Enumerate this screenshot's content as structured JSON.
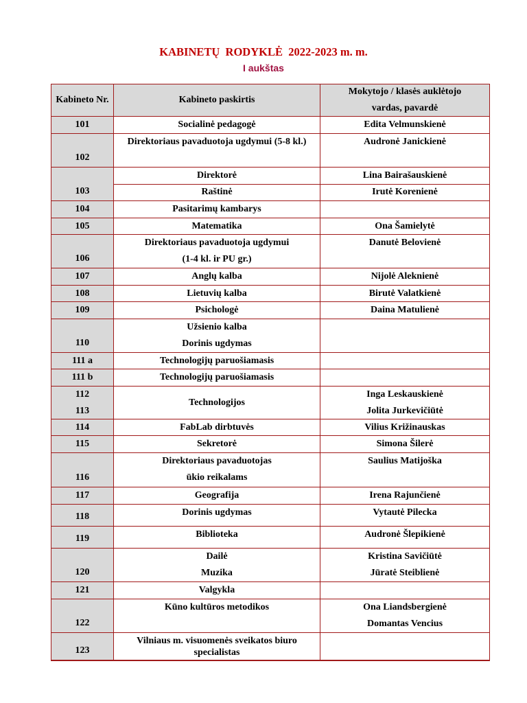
{
  "header": {
    "title": "KABINETŲ  RODYKLĖ  2022-2023 m. m.",
    "subtitle": "I aukštas"
  },
  "colors": {
    "title": "#c00000",
    "subtitle": "#a01040",
    "border": "#a01818",
    "shade": "#d9d9d9"
  },
  "table": {
    "columns": [
      "Kabineto Nr.",
      "Kabineto paskirtis",
      [
        "Mokytojo / klasės auklėtojo",
        "vardas, pavardė"
      ]
    ],
    "rows": [
      {
        "number": [
          "101"
        ],
        "entries": [
          {
            "purpose": [
              "Socialinė pedagogė"
            ],
            "teacher": [
              "Edita Velmunskienė"
            ]
          }
        ]
      },
      {
        "number": [
          "102"
        ],
        "entries": [
          {
            "purpose": [
              "Direktoriaus pavaduotoja ugdymui  (5-8 kl.)"
            ],
            "teacher": [
              "Audronė Janickienė"
            ]
          }
        ]
      },
      {
        "number": [
          "103"
        ],
        "entries": [
          {
            "purpose": [
              "Direktorė"
            ],
            "teacher": [
              "Lina Bairašauskienė"
            ]
          },
          {
            "purpose": [
              "Raštinė"
            ],
            "teacher": [
              "Irutė Korenienė"
            ]
          }
        ]
      },
      {
        "number": [
          "104"
        ],
        "entries": [
          {
            "purpose": [
              "Pasitarimų kambarys"
            ],
            "teacher": []
          }
        ]
      },
      {
        "number": [
          "105"
        ],
        "entries": [
          {
            "purpose": [
              "Matematika"
            ],
            "teacher": [
              "Ona Šamielytė"
            ]
          }
        ]
      },
      {
        "number": [
          "106"
        ],
        "entries": [
          {
            "purpose": [
              "Direktoriaus pavaduotoja ugdymui",
              "(1-4 kl. ir PU gr.)"
            ],
            "teacher": [
              "Danutė Belovienė"
            ]
          }
        ]
      },
      {
        "number": [
          "107"
        ],
        "entries": [
          {
            "purpose": [
              "Anglų kalba"
            ],
            "teacher": [
              "Nijolė Aleknienė"
            ]
          }
        ]
      },
      {
        "number": [
          "108"
        ],
        "entries": [
          {
            "purpose": [
              "Lietuvių kalba"
            ],
            "teacher": [
              "Birutė Valatkienė"
            ]
          }
        ]
      },
      {
        "number": [
          "109"
        ],
        "entries": [
          {
            "purpose": [
              "Psichologė"
            ],
            "teacher": [
              "Daina Matulienė"
            ]
          }
        ]
      },
      {
        "number": [
          "110"
        ],
        "entries": [
          {
            "purpose": [
              "Užsienio kalba",
              "Dorinis ugdymas"
            ],
            "teacher": []
          }
        ]
      },
      {
        "number": [
          "111 a"
        ],
        "entries": [
          {
            "purpose": [
              "Technologijų paruošiamasis"
            ],
            "teacher": []
          }
        ]
      },
      {
        "number": [
          "111 b"
        ],
        "entries": [
          {
            "purpose": [
              "Technologijų paruošiamasis"
            ],
            "teacher": []
          }
        ]
      },
      {
        "number": [
          "112",
          "113"
        ],
        "entries": [
          {
            "purpose": [
              "Technologijos"
            ],
            "teacher": [
              "Inga Leskauskienė",
              "Jolita Jurkevičiūtė"
            ]
          }
        ]
      },
      {
        "number": [
          "114"
        ],
        "entries": [
          {
            "purpose": [
              "FabLab dirbtuvės"
            ],
            "teacher": [
              "Vilius Križinauskas"
            ]
          }
        ]
      },
      {
        "number": [
          "115"
        ],
        "entries": [
          {
            "purpose": [
              "Sekretorė"
            ],
            "teacher": [
              "Simona Šilerė"
            ]
          }
        ]
      },
      {
        "number": [
          "116"
        ],
        "entries": [
          {
            "purpose": [
              "Direktoriaus pavaduotojas",
              "ūkio reikalams"
            ],
            "teacher": [
              "Saulius Matijoška"
            ]
          }
        ]
      },
      {
        "number": [
          "117"
        ],
        "entries": [
          {
            "purpose": [
              "Geografija"
            ],
            "teacher": [
              "Irena Rajunčienė"
            ]
          }
        ]
      },
      {
        "number": [
          "118"
        ],
        "entries": [
          {
            "purpose": [
              "Dorinis ugdymas"
            ],
            "teacher": [
              "Vytautė Pilecka"
            ]
          }
        ]
      },
      {
        "number": [
          "119"
        ],
        "entries": [
          {
            "purpose": [
              "Biblioteka"
            ],
            "teacher": [
              "Audronė Šlepikienė"
            ]
          }
        ]
      },
      {
        "number": [
          "120"
        ],
        "entries": [
          {
            "purpose": [
              "Dailė",
              "Muzika"
            ],
            "teacher": [
              "Kristina Savičiūtė",
              "Jūratė Steiblienė"
            ]
          }
        ]
      },
      {
        "number": [
          "121"
        ],
        "entries": [
          {
            "purpose": [
              "Valgykla"
            ],
            "teacher": []
          }
        ]
      },
      {
        "number": [
          "122"
        ],
        "entries": [
          {
            "purpose": [
              "Kūno kultūros metodikos"
            ],
            "teacher": [
              "Ona Liandsbergienė",
              "Domantas Vencius"
            ]
          }
        ]
      },
      {
        "number": [
          "123"
        ],
        "entries": [
          {
            "purpose": [
              "Vilniaus m. visuomenės sveikatos biuro",
              "specialistas"
            ],
            "teacher": []
          }
        ]
      }
    ]
  }
}
